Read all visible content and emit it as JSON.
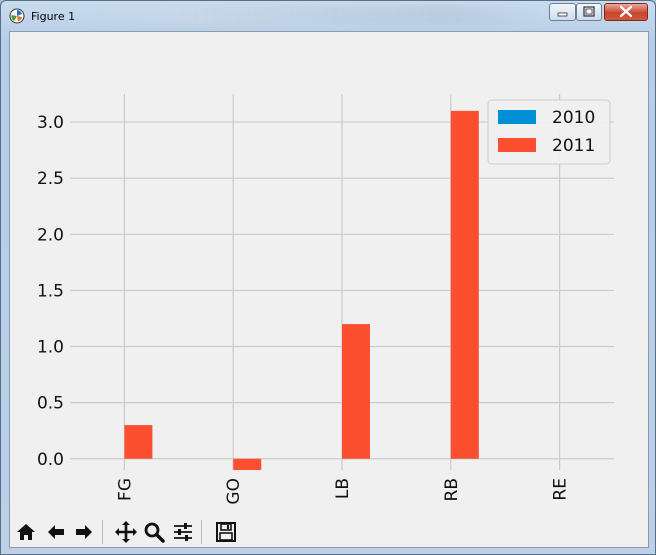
{
  "window": {
    "title": "Figure 1"
  },
  "toolbar": {
    "buttons": [
      {
        "name": "home-icon"
      },
      {
        "name": "back-arrow-icon"
      },
      {
        "name": "forward-arrow-icon"
      },
      {
        "name": "pan-icon"
      },
      {
        "name": "zoom-icon"
      },
      {
        "name": "configure-subplots-icon"
      },
      {
        "name": "save-icon"
      }
    ]
  },
  "colors": {
    "series_2010": "#008fd5",
    "series_2011": "#fc4f30",
    "grid": "#cbcbcb",
    "background": "#f0f0f0"
  },
  "chart_data": {
    "type": "bar",
    "categories": [
      "FG",
      "GO",
      "LB",
      "RB",
      "RE"
    ],
    "category_labels_shown": [
      "FG",
      "GO",
      "LB",
      "RB",
      "RE"
    ],
    "series": [
      {
        "name": "2010",
        "values": [
          0,
          0,
          0,
          0,
          0
        ]
      },
      {
        "name": "2011",
        "values": [
          0.3,
          -0.1,
          1.2,
          3.1,
          0
        ]
      }
    ],
    "yticks": [
      "0.0",
      "0.5",
      "1.0",
      "1.5",
      "2.0",
      "2.5",
      "3.0"
    ],
    "ylim": [
      -0.1,
      3.25
    ],
    "grid": true,
    "legend_position": "top-right",
    "xtick_rotation": "vertical",
    "title": "",
    "xlabel": "",
    "ylabel": ""
  }
}
